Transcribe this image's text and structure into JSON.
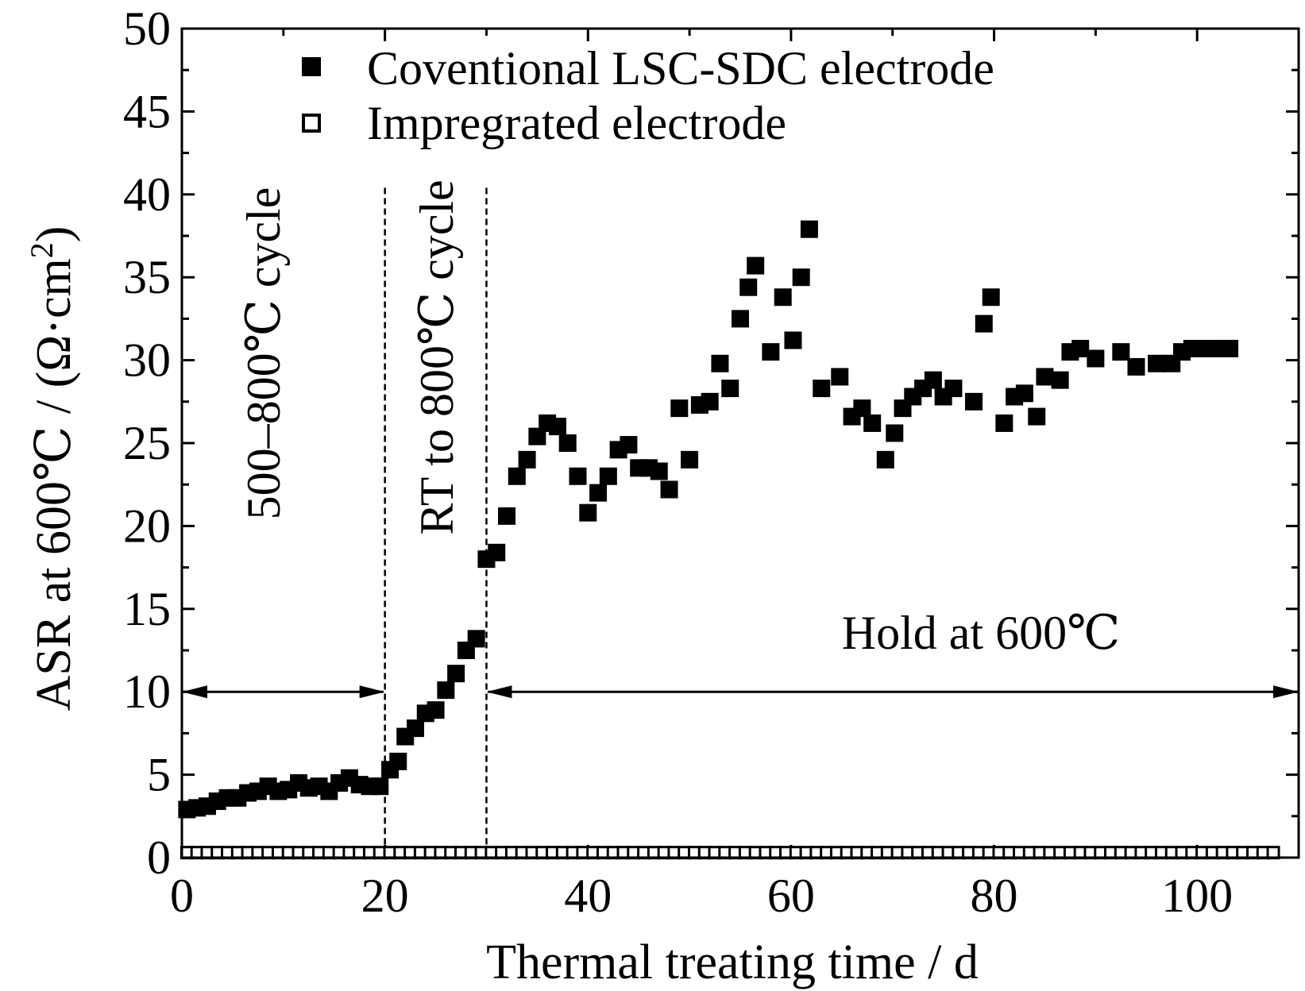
{
  "chart_data": {
    "type": "scatter",
    "xlabel": "Thermal treating time / d",
    "ylabel": "ASR at 600℃ / (Ω·cm",
    "ylabel_sup": "2",
    "ylabel_close": ")",
    "xlim": [
      0,
      110
    ],
    "ylim": [
      0,
      50
    ],
    "xticks": [
      0,
      20,
      40,
      60,
      80,
      100
    ],
    "xtick_labels": [
      "0",
      "20",
      "40",
      "60",
      "80",
      "100"
    ],
    "yticks": [
      0,
      5,
      10,
      15,
      20,
      25,
      30,
      35,
      40,
      45,
      50
    ],
    "ytick_labels": [
      "0",
      "5",
      "10",
      "15",
      "20",
      "25",
      "30",
      "35",
      "40",
      "45",
      "50"
    ],
    "legend": [
      {
        "label": "Coventional LSC-SDC electrode",
        "marker": "filled-square"
      },
      {
        "label": "Impregrated electrode",
        "marker": "open-square"
      }
    ],
    "annotations": {
      "region1": "500–800℃ cycle",
      "region2": "RT to 800℃ cycle",
      "region3": "Hold at 600℃",
      "divider_x": [
        20,
        30
      ],
      "arrow1_x": [
        0,
        20
      ],
      "arrow2_x": [
        30,
        110
      ],
      "arrow_y": 10
    },
    "series": [
      {
        "name": "Coventional LSC-SDC electrode",
        "marker": "filled-square",
        "x": [
          0.5,
          1.5,
          2.5,
          3.5,
          4.5,
          5.5,
          6.5,
          7.5,
          8.5,
          9.5,
          10.5,
          11.5,
          12.5,
          13.5,
          14.5,
          15.5,
          16.5,
          17.5,
          18.5,
          19.5,
          20.5,
          21.3,
          22,
          23,
          24,
          25,
          26,
          27,
          28,
          29,
          30,
          31,
          32,
          33,
          34,
          35,
          36,
          37,
          38,
          39,
          40,
          41,
          42,
          43,
          44,
          45,
          46,
          47,
          48,
          49,
          50,
          51,
          52,
          53,
          54,
          55,
          55.8,
          56.5,
          58,
          59.2,
          60.2,
          61,
          61.8,
          63,
          64.8,
          66,
          67,
          68,
          69.3,
          70.2,
          71,
          72,
          73,
          74,
          75,
          76,
          78,
          79,
          79.7,
          81,
          82,
          83,
          84.2,
          85,
          86.5,
          87.5,
          88.5,
          90,
          92.5,
          94,
          96,
          97.5,
          98.5,
          99.5,
          100.5,
          101.5,
          102.5,
          103.2
        ],
        "y": [
          2.9,
          3.0,
          3.1,
          3.4,
          3.6,
          3.6,
          3.9,
          4.0,
          4.3,
          4.0,
          4.1,
          4.5,
          4.2,
          4.3,
          4.0,
          4.5,
          4.8,
          4.4,
          4.3,
          4.3,
          5.3,
          5.8,
          7.3,
          7.8,
          8.7,
          8.9,
          10.1,
          11.1,
          12.5,
          13.2,
          18.0,
          18.4,
          20.6,
          23.0,
          24.0,
          25.4,
          26.2,
          26.0,
          25.0,
          23.0,
          20.8,
          22.0,
          23.0,
          24.6,
          24.9,
          23.5,
          23.5,
          23.3,
          22.2,
          27.1,
          24.0,
          27.3,
          27.5,
          29.8,
          28.3,
          32.5,
          34.4,
          35.7,
          30.5,
          33.8,
          31.2,
          35.0,
          37.9,
          28.3,
          29.0,
          26.6,
          27.1,
          26.2,
          24.0,
          25.6,
          27.1,
          27.8,
          28.3,
          28.8,
          27.8,
          28.3,
          27.5,
          32.2,
          33.8,
          26.2,
          27.8,
          28.0,
          26.6,
          29.0,
          28.8,
          30.5,
          30.7,
          30.1,
          30.5,
          29.6,
          29.8,
          29.8,
          30.5,
          30.7,
          30.7,
          30.7,
          30.7,
          30.7
        ]
      },
      {
        "name": "Impregrated electrode",
        "marker": "open-square",
        "x_start": 0.5,
        "x_end": 107.5,
        "x_step": 1,
        "y_constant": 0.3
      }
    ]
  }
}
